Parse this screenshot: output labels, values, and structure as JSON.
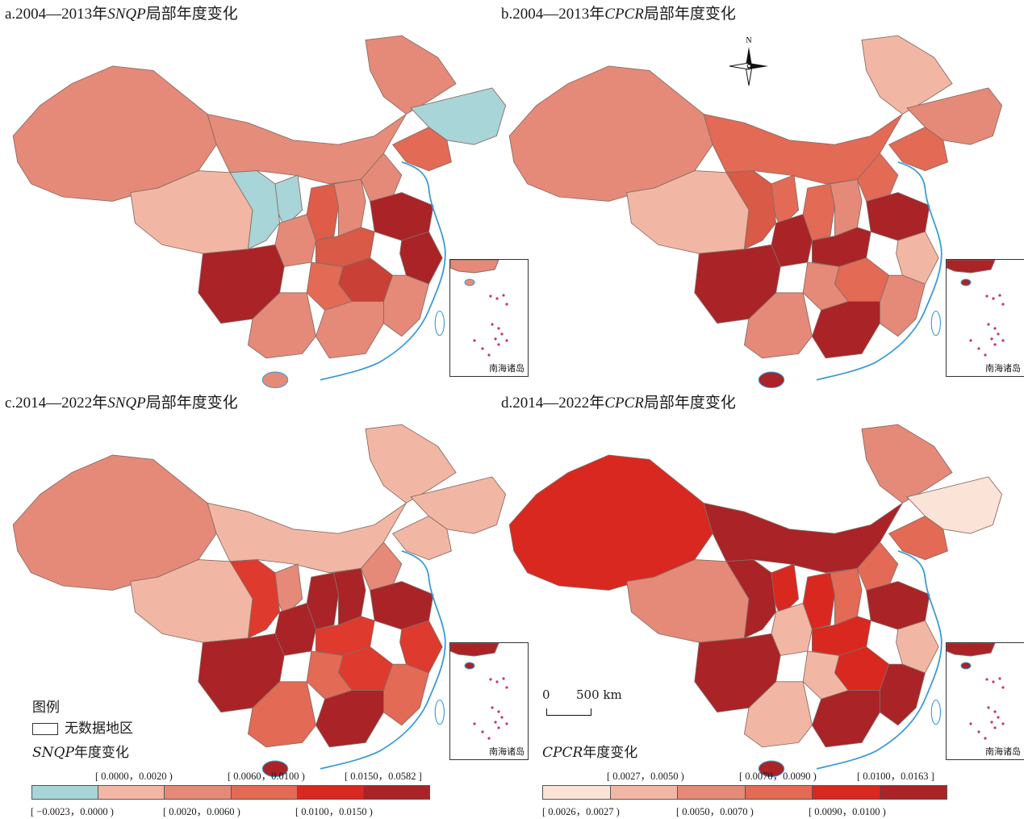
{
  "panels": [
    {
      "title_prefix": "a.2004—2013年",
      "title_var": "SNQP",
      "title_suffix": "局部年度变化",
      "inset_label": "南海诸岛",
      "fills": [
        "#e58a78",
        "#e68c7a",
        "#e58a78",
        "#a7d5d8",
        "#e36a55",
        "#a7d5d8",
        "#f2b7a4",
        "#a7d5d8",
        "#de5c48",
        "#e58a78",
        "#e58a78",
        "#e58a78",
        "#a92327",
        "#a92327",
        "#d85a47",
        "#c94036",
        "#e36a55",
        "#e58a78",
        "#e58a78",
        "#a92327",
        "#e58a78"
      ]
    },
    {
      "title_prefix": "b.2004—2013年",
      "title_var": "CPCR",
      "title_suffix": "局部年度变化",
      "inset_label": "南海诸岛",
      "fills": [
        "#e58a78",
        "#e36a55",
        "#f2b7a4",
        "#e58a78",
        "#e36a55",
        "#e36a55",
        "#f2b7a4",
        "#d85a47",
        "#e36a55",
        "#e58a78",
        "#e36a55",
        "#a92327",
        "#a92327",
        "#f2b7a4",
        "#a92327",
        "#e36a55",
        "#e58a78",
        "#e58a78",
        "#a92327",
        "#a92327",
        "#e58a78"
      ]
    },
    {
      "title_prefix": "c.2014—2022年",
      "title_var": "SNQP",
      "title_suffix": "局部年度变化",
      "inset_label": "南海诸岛",
      "fills": [
        "#e58a78",
        "#f2b7a4",
        "#f2b7a4",
        "#f2b7a4",
        "#f2b7a4",
        "#e58a78",
        "#f2b7a4",
        "#de3a2e",
        "#a92327",
        "#a92327",
        "#e58a78",
        "#a92327",
        "#a92327",
        "#de3a2e",
        "#de3a2e",
        "#de3a2e",
        "#e36a55",
        "#e36a55",
        "#a92327",
        "#a92327",
        "#e36a55"
      ]
    },
    {
      "title_prefix": "d.2014—2022年",
      "title_var": "CPCR",
      "title_suffix": "局部年度变化",
      "inset_label": "南海诸岛",
      "fills": [
        "#d9281f",
        "#a92327",
        "#e58a78",
        "#fbe3d8",
        "#e36a55",
        "#d9281f",
        "#e58a78",
        "#a92327",
        "#d9281f",
        "#e36a55",
        "#e36a55",
        "#f2b7a4",
        "#a92327",
        "#f2b7a4",
        "#d9281f",
        "#d9281f",
        "#f2b7a4",
        "#a92327",
        "#a92327",
        "#a92327",
        "#f2b7a4"
      ]
    }
  ],
  "north_label": "N",
  "scalebar": {
    "zero": "0",
    "label": "500 km"
  },
  "legend_left": {
    "heading": "图例",
    "nodata_label": "无数据地区",
    "var": "SNQP",
    "title_suffix": "年度变化",
    "colors": [
      "#a7d5d8",
      "#f2b7a4",
      "#e58a78",
      "#e36a55",
      "#d9281f",
      "#a92327"
    ],
    "top_labels": [
      "[ 0.0000，0.0020 )",
      "[ 0.0060，0.0100 )",
      "[ 0.0150，0.0582 ]"
    ],
    "bottom_labels": [
      "[ −0.0023，0.0000 )",
      "[ 0.0020，0.0060 )",
      "[ 0.0100，0.0150 )"
    ]
  },
  "legend_right": {
    "var": "CPCR",
    "title_suffix": "年度变化",
    "colors": [
      "#fbe3d8",
      "#f2b7a4",
      "#e58a78",
      "#e36a55",
      "#d9281f",
      "#a92327"
    ],
    "top_labels": [
      "[ 0.0027，0.0050 )",
      "[ 0.0070，0.0090 )",
      "[ 0.0100，0.0163 ]"
    ],
    "bottom_labels": [
      "[ 0.0026，0.0027 )",
      "[ 0.0050，0.0070 )",
      "[ 0.0090，0.0100 )"
    ]
  }
}
